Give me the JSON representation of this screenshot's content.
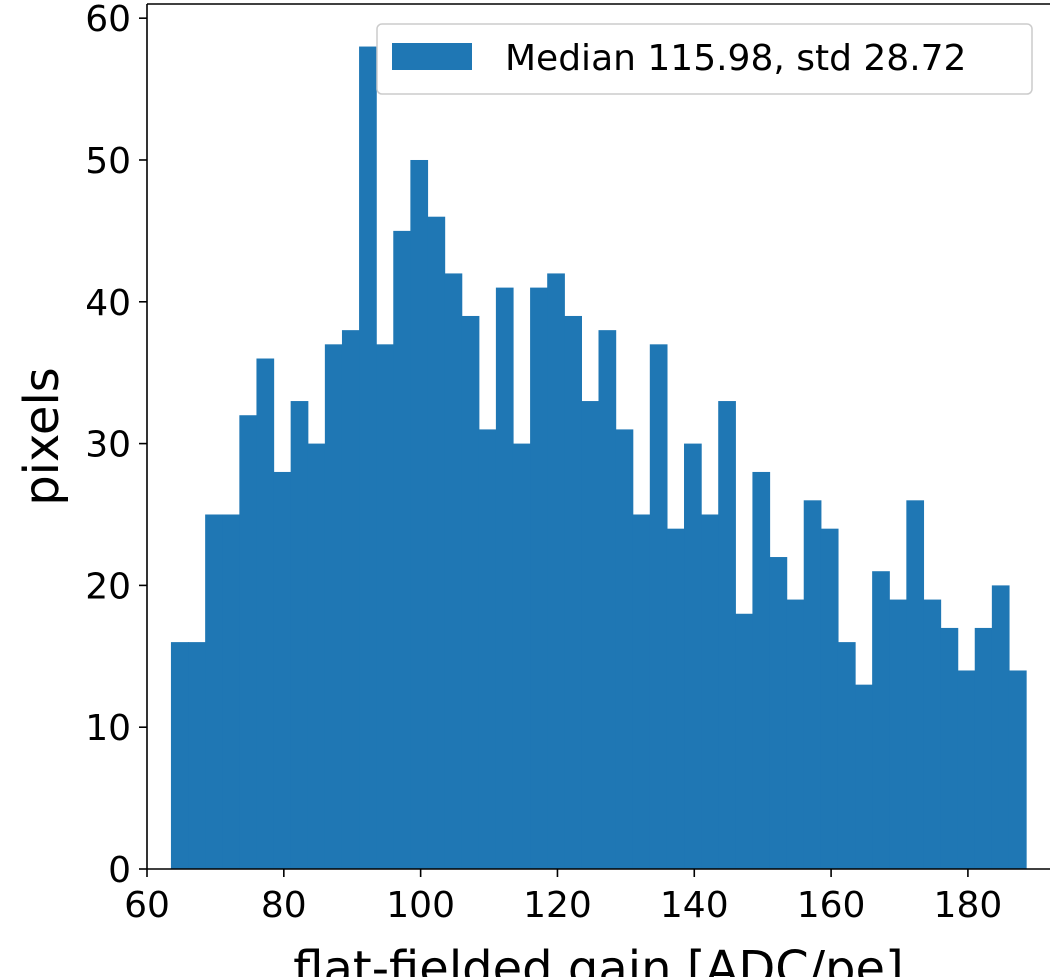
{
  "chart_data": {
    "type": "bar",
    "xlabel": "flat-fielded gain [ADC/pe]",
    "ylabel": "pixels",
    "xlim": [
      60,
      192
    ],
    "ylim": [
      0,
      61
    ],
    "xticks": [
      60,
      80,
      100,
      120,
      140,
      160,
      180
    ],
    "yticks": [
      0,
      10,
      20,
      30,
      40,
      50,
      60
    ],
    "grid": false,
    "legend_position": "top-right",
    "bin_start": 63.5,
    "bin_width": 2.5,
    "series": [
      {
        "name": "Median 115.98, std 28.72",
        "color": "#1f77b4",
        "values": [
          16,
          16,
          25,
          25,
          32,
          36,
          28,
          33,
          30,
          37,
          38,
          58,
          37,
          45,
          50,
          46,
          42,
          39,
          31,
          41,
          30,
          41,
          42,
          39,
          33,
          38,
          31,
          25,
          37,
          24,
          30,
          25,
          33,
          18,
          28,
          22,
          19,
          26,
          24,
          16,
          13,
          21,
          19,
          26,
          19,
          17,
          14,
          17,
          20,
          14
        ]
      }
    ]
  }
}
